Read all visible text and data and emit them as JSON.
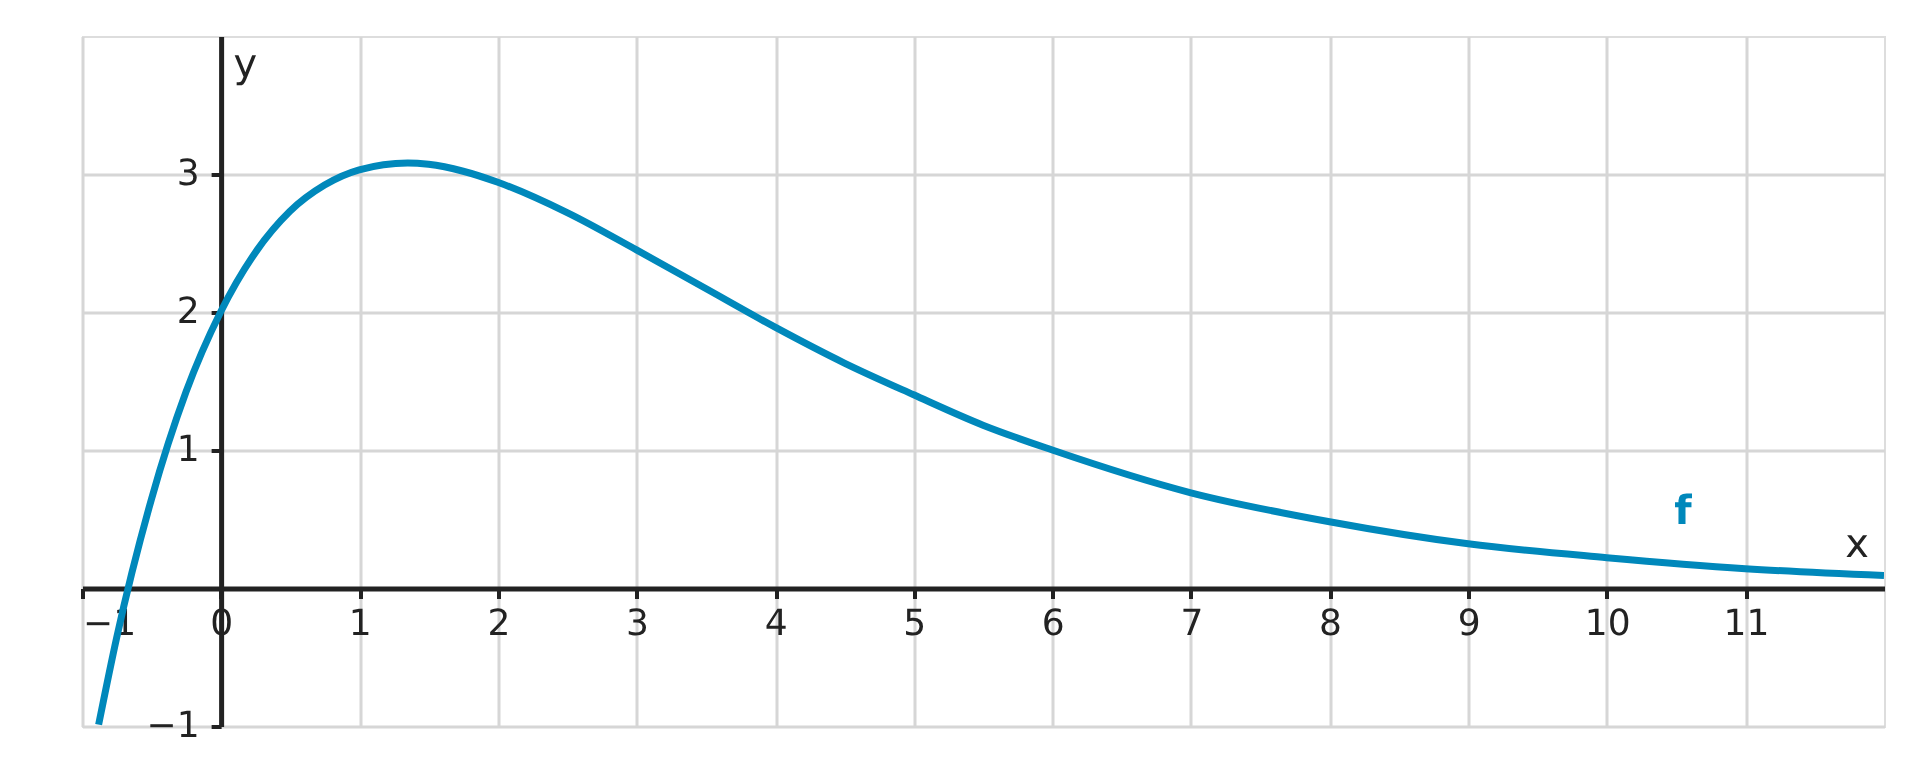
{
  "chart_data": {
    "type": "line",
    "xlabel": "x",
    "ylabel": "y",
    "x": [
      -0.88,
      -0.75,
      -0.5,
      -0.25,
      0,
      0.25,
      0.5,
      0.75,
      1,
      1.35,
      1.5,
      1.75,
      2,
      2.5,
      3,
      3.5,
      4,
      4.5,
      5,
      5.5,
      6,
      7,
      8,
      9,
      10,
      11,
      12
    ],
    "series": [
      {
        "name": "f",
        "color": "#0088bb",
        "values": [
          -0.99,
          -0.36,
          0.64,
          1.42,
          2,
          2.43,
          2.73,
          2.92,
          3.03,
          3.08,
          3.07,
          3.02,
          2.94,
          2.72,
          2.45,
          2.17,
          1.89,
          1.63,
          1.4,
          1.18,
          1.0,
          0.69,
          0.48,
          0.32,
          0.22,
          0.14,
          0.09
        ]
      }
    ],
    "xlim": [
      -1,
      12
    ],
    "ylim": [
      -1,
      4
    ],
    "xticks": [
      {
        "value": -1,
        "label": "−1"
      },
      0,
      1,
      2,
      3,
      4,
      5,
      6,
      7,
      8,
      9,
      10,
      11
    ],
    "yticks": [
      {
        "value": -1,
        "label": "−1"
      },
      {
        "value": 0,
        "label": null
      },
      1,
      2,
      3
    ],
    "grid": true,
    "line_style": "solid"
  }
}
